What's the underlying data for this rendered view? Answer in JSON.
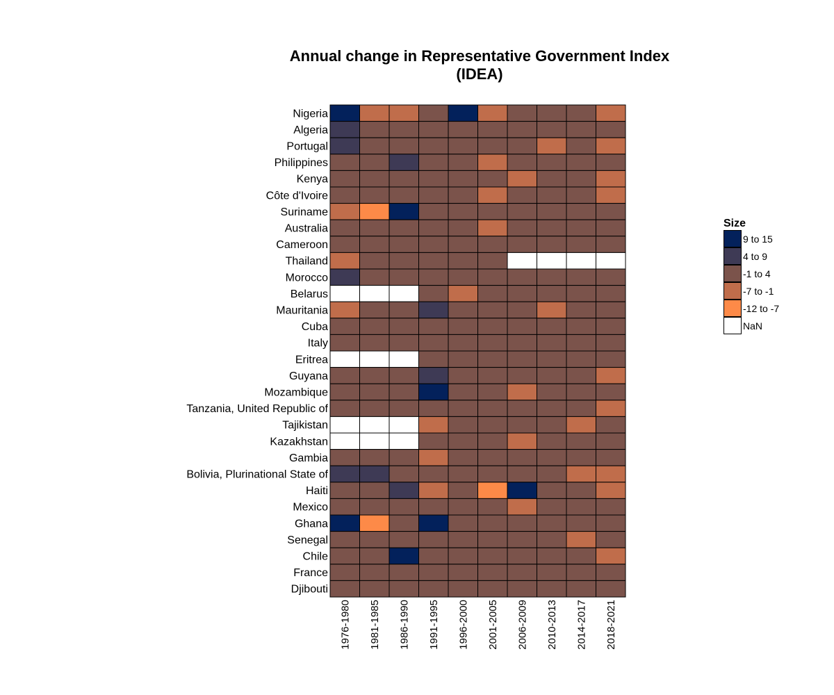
{
  "chart_data": {
    "type": "heatmap",
    "title_lines": [
      "Annual change in Representative Government Index",
      "(IDEA)"
    ],
    "columns": [
      "1976-1980",
      "1981-1985",
      "1986-1990",
      "1991-1995",
      "1996-2000",
      "2001-2005",
      "2006-2009",
      "2010-2013",
      "2014-2017",
      "2018-2021"
    ],
    "rows": [
      "Nigeria",
      "Algeria",
      "Portugal",
      "Philippines",
      "Kenya",
      "Côte d'Ivoire",
      "Suriname",
      "Australia",
      "Cameroon",
      "Thailand",
      "Morocco",
      "Belarus",
      "Mauritania",
      "Cuba",
      "Italy",
      "Eritrea",
      "Guyana",
      "Mozambique",
      "Tanzania, United Republic of",
      "Tajikistan",
      "Kazakhstan",
      "Gambia",
      "Bolivia, Plurinational State of",
      "Haiti",
      "Mexico",
      "Ghana",
      "Senegal",
      "Chile",
      "France",
      "Djibouti"
    ],
    "legend_title": "Size",
    "categories": [
      {
        "key": "9to15",
        "label": "9 to 15",
        "color": "#03215b"
      },
      {
        "key": "4to9",
        "label": "4 to 9",
        "color": "#3e3a55"
      },
      {
        "key": "m1to4",
        "label": "-1 to 4",
        "color": "#7b534b"
      },
      {
        "key": "m7tom1",
        "label": "-7 to -1",
        "color": "#c06d4b"
      },
      {
        "key": "m12tom7",
        "label": "-12 to -7",
        "color": "#fd8a48"
      },
      {
        "key": "nan",
        "label": "NaN",
        "color": "#ffffff"
      }
    ],
    "values": [
      [
        "9to15",
        "m7tom1",
        "m7tom1",
        "m1to4",
        "9to15",
        "m7tom1",
        "m1to4",
        "m1to4",
        "m1to4",
        "m7tom1"
      ],
      [
        "4to9",
        "m1to4",
        "m1to4",
        "m1to4",
        "m1to4",
        "m1to4",
        "m1to4",
        "m1to4",
        "m1to4",
        "m1to4"
      ],
      [
        "4to9",
        "m1to4",
        "m1to4",
        "m1to4",
        "m1to4",
        "m1to4",
        "m1to4",
        "m7tom1",
        "m1to4",
        "m7tom1"
      ],
      [
        "m1to4",
        "m1to4",
        "4to9",
        "m1to4",
        "m1to4",
        "m7tom1",
        "m1to4",
        "m1to4",
        "m1to4",
        "m1to4"
      ],
      [
        "m1to4",
        "m1to4",
        "m1to4",
        "m1to4",
        "m1to4",
        "m1to4",
        "m7tom1",
        "m1to4",
        "m1to4",
        "m7tom1"
      ],
      [
        "m1to4",
        "m1to4",
        "m1to4",
        "m1to4",
        "m1to4",
        "m7tom1",
        "m1to4",
        "m1to4",
        "m1to4",
        "m7tom1"
      ],
      [
        "m7tom1",
        "m12tom7",
        "9to15",
        "m1to4",
        "m1to4",
        "m1to4",
        "m1to4",
        "m1to4",
        "m1to4",
        "m1to4"
      ],
      [
        "m1to4",
        "m1to4",
        "m1to4",
        "m1to4",
        "m1to4",
        "m7tom1",
        "m1to4",
        "m1to4",
        "m1to4",
        "m1to4"
      ],
      [
        "m1to4",
        "m1to4",
        "m1to4",
        "m1to4",
        "m1to4",
        "m1to4",
        "m1to4",
        "m1to4",
        "m1to4",
        "m1to4"
      ],
      [
        "m7tom1",
        "m1to4",
        "m1to4",
        "m1to4",
        "m1to4",
        "m1to4",
        "nan",
        "nan",
        "nan",
        "nan"
      ],
      [
        "4to9",
        "m1to4",
        "m1to4",
        "m1to4",
        "m1to4",
        "m1to4",
        "m1to4",
        "m1to4",
        "m1to4",
        "m1to4"
      ],
      [
        "nan",
        "nan",
        "nan",
        "m1to4",
        "m7tom1",
        "m1to4",
        "m1to4",
        "m1to4",
        "m1to4",
        "m1to4"
      ],
      [
        "m7tom1",
        "m1to4",
        "m1to4",
        "4to9",
        "m1to4",
        "m1to4",
        "m1to4",
        "m7tom1",
        "m1to4",
        "m1to4"
      ],
      [
        "m1to4",
        "m1to4",
        "m1to4",
        "m1to4",
        "m1to4",
        "m1to4",
        "m1to4",
        "m1to4",
        "m1to4",
        "m1to4"
      ],
      [
        "m1to4",
        "m1to4",
        "m1to4",
        "m1to4",
        "m1to4",
        "m1to4",
        "m1to4",
        "m1to4",
        "m1to4",
        "m1to4"
      ],
      [
        "nan",
        "nan",
        "nan",
        "m1to4",
        "m1to4",
        "m1to4",
        "m1to4",
        "m1to4",
        "m1to4",
        "m1to4"
      ],
      [
        "m1to4",
        "m1to4",
        "m1to4",
        "4to9",
        "m1to4",
        "m1to4",
        "m1to4",
        "m1to4",
        "m1to4",
        "m7tom1"
      ],
      [
        "m1to4",
        "m1to4",
        "m1to4",
        "9to15",
        "m1to4",
        "m1to4",
        "m7tom1",
        "m1to4",
        "m1to4",
        "m1to4"
      ],
      [
        "m1to4",
        "m1to4",
        "m1to4",
        "m1to4",
        "m1to4",
        "m1to4",
        "m1to4",
        "m1to4",
        "m1to4",
        "m7tom1"
      ],
      [
        "nan",
        "nan",
        "nan",
        "m7tom1",
        "m1to4",
        "m1to4",
        "m1to4",
        "m1to4",
        "m7tom1",
        "m1to4"
      ],
      [
        "nan",
        "nan",
        "nan",
        "m1to4",
        "m1to4",
        "m1to4",
        "m7tom1",
        "m1to4",
        "m1to4",
        "m1to4"
      ],
      [
        "m1to4",
        "m1to4",
        "m1to4",
        "m7tom1",
        "m1to4",
        "m1to4",
        "m1to4",
        "m1to4",
        "m1to4",
        "m1to4"
      ],
      [
        "4to9",
        "4to9",
        "m1to4",
        "m1to4",
        "m1to4",
        "m1to4",
        "m1to4",
        "m1to4",
        "m7tom1",
        "m7tom1"
      ],
      [
        "m1to4",
        "m1to4",
        "4to9",
        "m7tom1",
        "m1to4",
        "m12tom7",
        "9to15",
        "m1to4",
        "m1to4",
        "m7tom1"
      ],
      [
        "m1to4",
        "m1to4",
        "m1to4",
        "m1to4",
        "m1to4",
        "m1to4",
        "m7tom1",
        "m1to4",
        "m1to4",
        "m1to4"
      ],
      [
        "9to15",
        "m12tom7",
        "m1to4",
        "9to15",
        "m1to4",
        "m1to4",
        "m1to4",
        "m1to4",
        "m1to4",
        "m1to4"
      ],
      [
        "m1to4",
        "m1to4",
        "m1to4",
        "m1to4",
        "m1to4",
        "m1to4",
        "m1to4",
        "m1to4",
        "m7tom1",
        "m1to4"
      ],
      [
        "m1to4",
        "m1to4",
        "9to15",
        "m1to4",
        "m1to4",
        "m1to4",
        "m1to4",
        "m1to4",
        "m1to4",
        "m7tom1"
      ],
      [
        "m1to4",
        "m1to4",
        "m1to4",
        "m1to4",
        "m1to4",
        "m1to4",
        "m1to4",
        "m1to4",
        "m1to4",
        "m1to4"
      ],
      [
        "m1to4",
        "m1to4",
        "m1to4",
        "m1to4",
        "m1to4",
        "m1to4",
        "m1to4",
        "m1to4",
        "m1to4",
        "m1to4"
      ]
    ]
  }
}
